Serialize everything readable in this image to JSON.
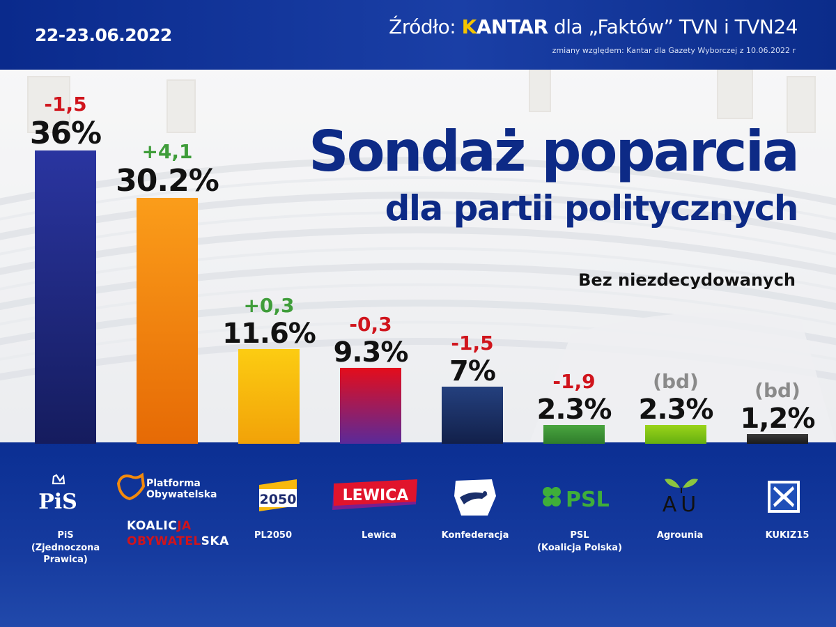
{
  "header": {
    "date": "22-23.06.2022",
    "source_prefix": "Źródło:",
    "source_brand": "KANTAR",
    "source_rest": "dla „Faktów” TVN i TVN24",
    "source_note": "zmiany względem: Kantar dla Gazety Wyborczej z 10.06.2022 r"
  },
  "chart_data": {
    "type": "bar",
    "title": "Sondaż poparcia",
    "subtitle": "dla partii politycznych",
    "note": "Bez niezdecydowanych",
    "categories": [
      "PiS (Zjednoczona Prawica)",
      "Platforma Obywatelska / Koalicja Obywatelska",
      "PL2050",
      "Lewica",
      "Konfederacja",
      "PSL (Koalicja Polska)",
      "Agrounia",
      "KUKIZ15"
    ],
    "values": [
      36,
      30.2,
      11.6,
      9.3,
      7,
      2.3,
      2.3,
      1.2
    ],
    "value_labels": [
      "36%",
      "30.2%",
      "11.6%",
      "9.3%",
      "7%",
      "2.3%",
      "2.3%",
      "1,2%"
    ],
    "changes": [
      "-1,5",
      "+4,1",
      "+0,3",
      "-0,3",
      "-1,5",
      "-1,9",
      "(bd)",
      "(bd)"
    ],
    "ylim": [
      0,
      36
    ],
    "grid": false
  },
  "colors": {
    "negative": "#d0141c",
    "positive": "#3f9d3a",
    "neutral": "#8a8a8a",
    "title": "#0d2a86"
  },
  "parties": [
    {
      "logo": "pis-logo",
      "logo_text": "PiS",
      "label_lines": [
        "PiS",
        "(Zjednoczona",
        "Prawica)"
      ],
      "color": "#1f2a86"
    },
    {
      "logo": "po-logo",
      "logo_text_1": "Platforma",
      "logo_text_2": "Obywatelska",
      "ko_1a": "KOALIC",
      "ko_1b": "JA",
      "ko_2a": "OBYWATEL",
      "ko_2b": "SKA",
      "label_lines": [],
      "color": "#f28a0c"
    },
    {
      "logo": "pl2050-logo",
      "logo_text": "2050",
      "label_lines": [
        "PL2050"
      ],
      "color": "#f7b90e"
    },
    {
      "logo": "lewica-logo",
      "logo_text": "LEWICA",
      "label_lines": [
        "Lewica"
      ],
      "color": "#c0142a"
    },
    {
      "logo": "konfederacja-logo",
      "logo_text": "",
      "label_lines": [
        "Konfederacja"
      ],
      "color": "#1a2f6a"
    },
    {
      "logo": "psl-logo",
      "logo_text": "PSL",
      "label_lines": [
        "PSL",
        "(Koalicja Polska)"
      ],
      "color": "#3c8f35"
    },
    {
      "logo": "agrounia-logo",
      "logo_text": "AU",
      "label_lines": [
        "Agrounia"
      ],
      "color": "#7fbf12"
    },
    {
      "logo": "kukiz-logo",
      "logo_text": "",
      "label_lines": [
        "KUKIZ15"
      ],
      "color": "#2b2b2b"
    }
  ]
}
